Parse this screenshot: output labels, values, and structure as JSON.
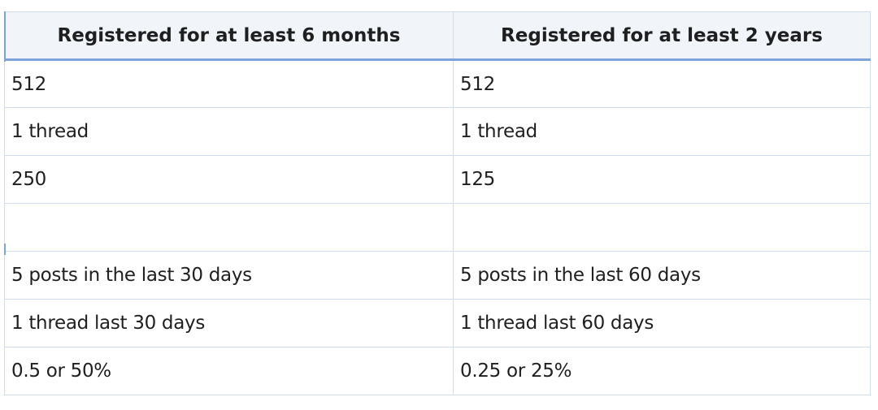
{
  "table": {
    "header": [
      "Registered for at least 6 months",
      "Registered for at least 2 years"
    ],
    "rows": [
      [
        "512",
        "512"
      ],
      [
        "1 thread",
        "1 thread"
      ],
      [
        "250",
        "125"
      ],
      [
        "5 posts in the last 30 days",
        "5 posts in the last 60 days"
      ],
      [
        "1 thread last 30 days",
        "1 thread last 60 days"
      ],
      [
        "0.5 or 50%",
        "0.25 or 25%"
      ]
    ]
  }
}
